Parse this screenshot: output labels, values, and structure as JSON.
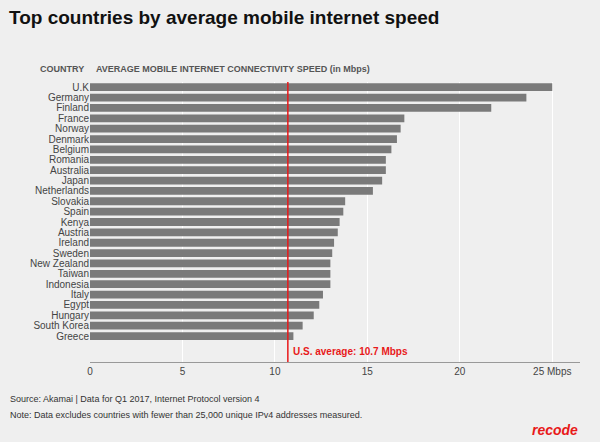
{
  "chart_data": {
    "type": "bar",
    "orientation": "horizontal",
    "title": "Top countries by average mobile internet speed",
    "annotations": [
      "COUNTRY",
      "AVERAGE MOBILE INTERNET CONNECTIVITY SPEED (in Mbps)"
    ],
    "categories": [
      "U.K",
      "Germany",
      "Finland",
      "France",
      "Norway",
      "Denmark",
      "Belgium",
      "Romania",
      "Australia",
      "Japan",
      "Netherlands",
      "Slovakia",
      "Spain",
      "Kenya",
      "Austria",
      "Ireland",
      "Sweden",
      "New Zealand",
      "Taiwan",
      "Indonesia",
      "Italy",
      "Egypt",
      "Hungary",
      "South Korea",
      "Greece"
    ],
    "values": [
      25.0,
      23.6,
      21.7,
      17.0,
      16.8,
      16.6,
      16.3,
      16.0,
      16.0,
      15.8,
      15.3,
      13.8,
      13.7,
      13.5,
      13.4,
      13.2,
      13.1,
      13.0,
      13.0,
      13.0,
      12.6,
      12.4,
      12.1,
      11.5,
      11.0
    ],
    "color": "#7a7a7a",
    "background_color": "#efefef",
    "xlim": [
      0,
      26.5
    ],
    "xticks": [
      0,
      5,
      10,
      15,
      20,
      {
        "value": 25,
        "label": "25 Mbps"
      }
    ],
    "grid": true,
    "reference_line": {
      "x": 10.7,
      "label": "U.S. average: 10.7 Mbps",
      "color": "#e8191a"
    },
    "source": "Source: Akamai | Data for Q1 2017, Internet Protocol version 4",
    "note": "Note: Data excludes countries with fewer than 25,000 unique IPv4 addresses measured.",
    "logo": {
      "text": "recode",
      "color": "#e8191a"
    }
  }
}
